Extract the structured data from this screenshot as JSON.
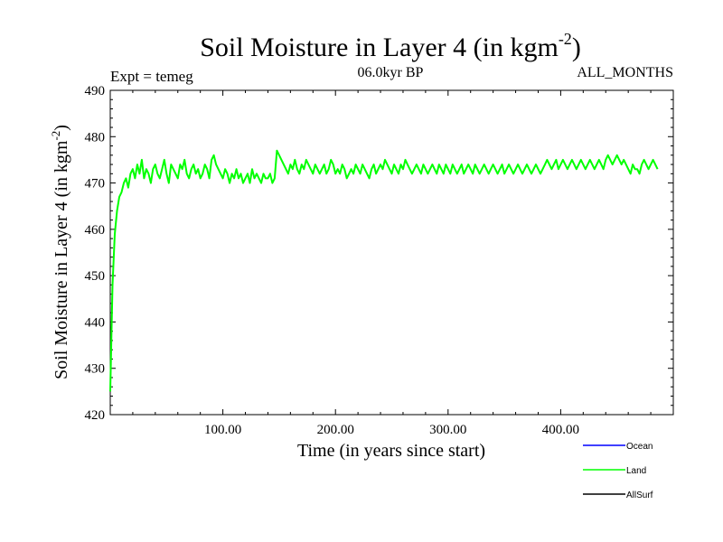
{
  "chart_data": {
    "type": "line",
    "title_main": "Soil Moisture in Layer 4 (in kgm",
    "title_sup": "-2",
    "title_close": ")",
    "subtitle_left": "Expt = temeg",
    "subtitle_center": "06.0kyr BP",
    "subtitle_right": "ALL_MONTHS",
    "xlabel": "Time (in years since start)",
    "ylabel_main": "Soil Moisture in Layer 4 (in kgm",
    "ylabel_sup": "-2",
    "ylabel_close": ")",
    "xlim": [
      0,
      500
    ],
    "ylim": [
      420,
      490
    ],
    "x_ticks": [
      100,
      200,
      300,
      400
    ],
    "x_tick_labels": [
      "100.00",
      "200.00",
      "300.00",
      "400.00"
    ],
    "y_ticks": [
      420,
      430,
      440,
      450,
      460,
      470,
      480,
      490
    ],
    "y_tick_labels": [
      "420",
      "430",
      "440",
      "450",
      "460",
      "470",
      "480",
      "490"
    ],
    "legend": [
      {
        "name": "Ocean",
        "color": "#0000ff"
      },
      {
        "name": "Land",
        "color": "#00ff00"
      },
      {
        "name": "AllSurf",
        "color": "#000000"
      }
    ],
    "series": [
      {
        "name": "Land",
        "color": "#00ff00",
        "x_step": 2,
        "values": [
          425,
          448,
          459,
          464,
          467,
          468,
          470,
          471,
          469,
          472,
          473,
          471,
          474,
          472,
          475,
          471,
          473,
          472,
          470,
          473,
          474,
          472,
          471,
          473,
          475,
          472,
          470,
          474,
          473,
          472,
          471,
          474,
          473,
          475,
          472,
          471,
          473,
          474,
          472,
          473,
          471,
          472,
          474,
          473,
          471,
          475,
          476,
          474,
          473,
          472,
          471,
          473,
          472,
          470,
          472,
          471,
          473,
          471,
          472,
          470,
          471,
          472,
          470,
          473,
          471,
          472,
          471,
          470,
          472,
          471,
          471,
          472,
          470,
          471,
          477,
          476,
          475,
          474,
          473,
          472,
          474,
          473,
          475,
          473,
          472,
          474,
          473,
          475,
          474,
          473,
          472,
          474,
          473,
          472,
          473,
          474,
          472,
          473,
          475,
          474,
          472,
          473,
          472,
          474,
          473,
          471,
          472,
          473,
          472,
          474,
          473,
          472,
          474,
          473,
          472,
          471,
          473,
          474,
          472,
          473,
          474,
          473,
          475,
          474,
          473,
          472,
          474,
          473,
          472,
          474,
          473,
          475,
          474,
          473,
          472,
          473,
          474,
          473,
          472,
          474,
          473,
          472,
          473,
          474,
          473,
          472,
          474,
          473,
          472,
          474,
          473,
          472,
          474,
          473,
          472,
          473,
          474,
          472,
          473,
          474,
          473,
          472,
          474,
          473,
          472,
          473,
          474,
          473,
          472,
          473,
          474,
          473,
          472,
          473,
          474,
          472,
          473,
          474,
          473,
          472,
          473,
          474,
          473,
          472,
          473,
          474,
          473,
          472,
          473,
          474,
          473,
          472,
          473,
          474,
          475,
          474,
          473,
          474,
          475,
          473,
          474,
          475,
          474,
          473,
          474,
          475,
          474,
          473,
          474,
          475,
          474,
          473,
          474,
          475,
          474,
          473,
          474,
          475,
          474,
          473,
          475,
          476,
          475,
          474,
          475,
          476,
          475,
          474,
          475,
          474,
          473,
          472,
          474,
          473,
          473,
          472,
          474,
          475,
          474,
          473,
          474,
          475,
          474,
          473
        ]
      }
    ]
  }
}
